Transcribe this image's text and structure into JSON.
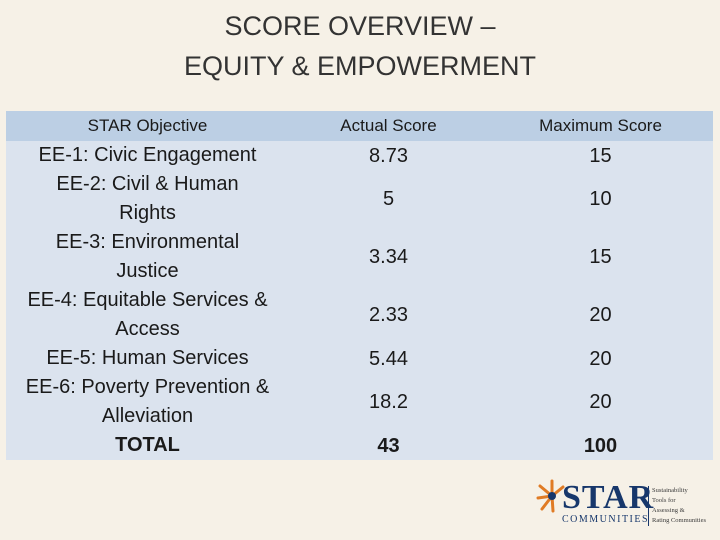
{
  "slide": {
    "title_line1": "SCORE OVERVIEW –",
    "title_line2": "EQUITY & EMPOWERMENT"
  },
  "table": {
    "headers": [
      "STAR Objective",
      "Actual Score",
      "Maximum Score"
    ],
    "rows": [
      {
        "objective": "EE-1: Civic Engagement",
        "actual": "8.73",
        "maximum": "15"
      },
      {
        "objective": "EE-2: Civil & Human Rights",
        "actual": "5",
        "maximum": "10"
      },
      {
        "objective": "EE-3: Environmental Justice",
        "actual": "3.34",
        "maximum": "15"
      },
      {
        "objective": "EE-4: Equitable Services & Access",
        "actual": "2.33",
        "maximum": "20"
      },
      {
        "objective": "EE-5: Human Services",
        "actual": "5.44",
        "maximum": "20"
      },
      {
        "objective": "EE-6: Poverty Prevention & Alleviation",
        "actual": "18.2",
        "maximum": "20"
      }
    ],
    "total": {
      "label": "TOTAL",
      "actual": "43",
      "maximum": "100"
    }
  },
  "logo": {
    "wordmark": "STAR",
    "sub": "COMMUNITIES",
    "tagline": [
      "Sustainability",
      "Tools for",
      "Assessing &",
      "Rating Communities"
    ],
    "colors": {
      "navy": "#17376b",
      "orange": "#e07b24"
    }
  },
  "colors": {
    "background": "#f6f1e7",
    "header_fill": "#bccfe4",
    "row_fill": "#dbe3ee"
  }
}
